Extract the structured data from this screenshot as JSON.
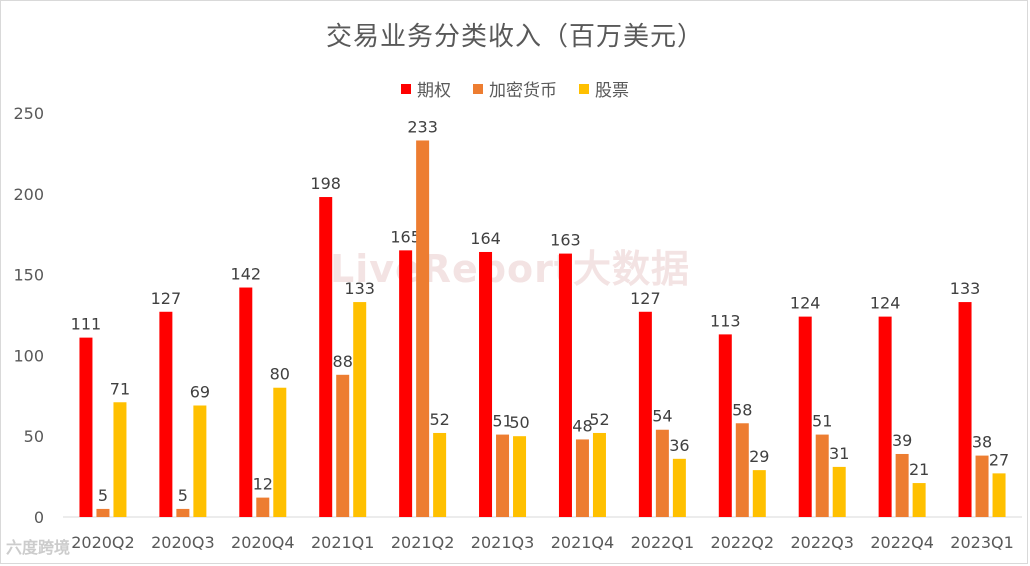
{
  "chart_data": {
    "type": "bar",
    "title": "交易业务分类收入（百万美元）",
    "categories": [
      "2020Q2",
      "2020Q3",
      "2020Q4",
      "2021Q1",
      "2021Q2",
      "2021Q3",
      "2021Q4",
      "2022Q1",
      "2022Q2",
      "2022Q3",
      "2022Q4",
      "2023Q1"
    ],
    "series": [
      {
        "name": "期权",
        "color": "#ff0000",
        "values": [
          111,
          127,
          142,
          198,
          165,
          164,
          163,
          127,
          113,
          124,
          124,
          133
        ]
      },
      {
        "name": "加密货币",
        "color": "#ed7d31",
        "values": [
          5,
          5,
          12,
          88,
          233,
          51,
          48,
          54,
          58,
          51,
          39,
          38
        ]
      },
      {
        "name": "股票",
        "color": "#ffc000",
        "values": [
          71,
          69,
          80,
          133,
          52,
          50,
          52,
          36,
          29,
          31,
          21,
          27
        ]
      }
    ],
    "ylim": [
      0,
      250
    ],
    "yticks": [
      0,
      50,
      100,
      150,
      200,
      250
    ],
    "xlabel": "",
    "ylabel": "",
    "legend_position": "top-center",
    "grid": false
  },
  "watermark": "LiveReport大数据",
  "footer_logo": "六度跨境"
}
